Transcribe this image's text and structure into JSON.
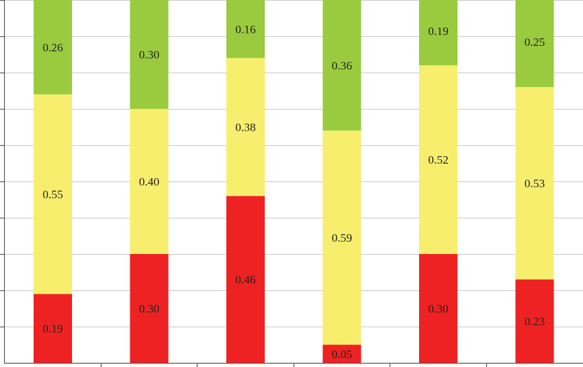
{
  "chart_data": {
    "type": "bar",
    "stacked": true,
    "title": "",
    "xlabel": "",
    "ylabel": "",
    "ylim": [
      0,
      1
    ],
    "grid": true,
    "legend": "none",
    "categories": [
      "",
      "",
      "",
      "",
      "",
      ""
    ],
    "series": [
      {
        "color": "#ee2222",
        "values": [
          0.19,
          0.3,
          0.46,
          0.05,
          0.3,
          0.23
        ],
        "labels": [
          "0.19",
          "0.30",
          "0.46",
          "0.05",
          "0.30",
          "0.23"
        ]
      },
      {
        "color": "#f7ee6e",
        "values": [
          0.55,
          0.4,
          0.38,
          0.59,
          0.52,
          0.53
        ],
        "labels": [
          "0.55",
          "0.40",
          "0.38",
          "0.59",
          "0.52",
          "0.53"
        ]
      },
      {
        "color": "#9acb3e",
        "values": [
          0.26,
          0.3,
          0.16,
          0.36,
          0.19,
          0.25
        ],
        "labels": [
          "0.26",
          "0.30",
          "0.16",
          "0.36",
          "0.19",
          "0.25"
        ]
      }
    ]
  }
}
